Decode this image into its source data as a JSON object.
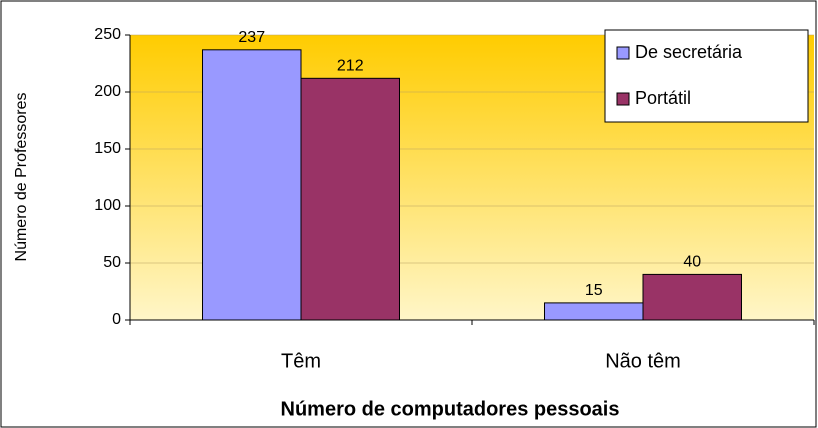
{
  "chart_data": {
    "type": "bar",
    "x_label": "Número de computadores pessoais",
    "y_label": "Número de Professores",
    "categories": [
      "Têm",
      "Não têm"
    ],
    "series": [
      {
        "name": "De secretária",
        "color": "#9999ff",
        "values": [
          237,
          15
        ]
      },
      {
        "name": "Portátil",
        "color": "#993366",
        "values": [
          212,
          40
        ]
      }
    ],
    "ylim": [
      0,
      250
    ],
    "yticks": [
      0,
      50,
      100,
      150,
      200,
      250
    ],
    "grid": true,
    "legend": "upper right"
  }
}
